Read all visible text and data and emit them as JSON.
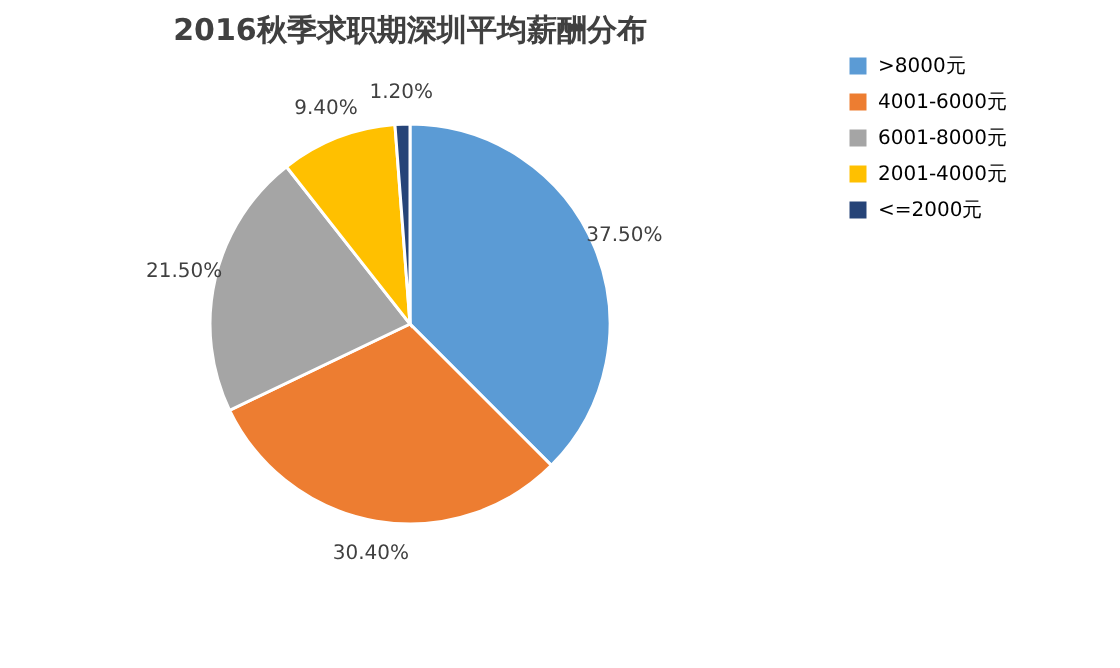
{
  "chart_data": {
    "type": "pie",
    "title": "2016秋季求职期深圳平均薪酬分布",
    "categories": [
      ">8000元",
      "4001-6000元",
      "6001-8000元",
      "2001-4000元",
      "<=2000元"
    ],
    "values": [
      37.5,
      30.4,
      21.5,
      9.4,
      1.2
    ],
    "colors": [
      "#5b9bd5",
      "#ed7d31",
      "#a5a5a5",
      "#ffc000",
      "#264478"
    ],
    "value_labels": [
      "37.50%",
      "30.40%",
      "21.50%",
      "9.40%",
      "1.20%"
    ],
    "legend": "right"
  }
}
